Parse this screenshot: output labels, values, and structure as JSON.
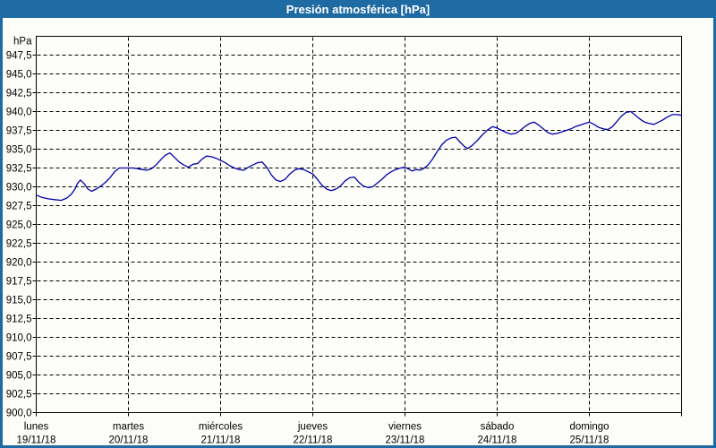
{
  "window": {
    "title": "Presión atmosférica [hPa]"
  },
  "colors": {
    "title_bar": "#1e6ba4",
    "border": "#1e6ba4",
    "title_text": "#ffffff",
    "background": "#fcfdf8",
    "plot_background": "#fdfdfa",
    "grid": "#000000",
    "axis": "#000000",
    "tick_text": "#000000",
    "line": "#0000a8"
  },
  "chart_data": {
    "type": "line",
    "title": "Presión atmosférica [hPa]",
    "ylabel": "hPa",
    "xlabel": "",
    "grid": "dashed",
    "legend_position": "none",
    "y_min": 900.0,
    "y_max": 950.0,
    "y_tick_step": 2.5,
    "y_ticks": [
      947.5,
      945.0,
      942.5,
      940.0,
      937.5,
      935.0,
      932.5,
      930.0,
      927.5,
      925.0,
      922.5,
      920.0,
      917.5,
      915.0,
      912.5,
      910.0,
      907.5,
      905.0,
      902.5,
      900.0
    ],
    "x_days": [
      {
        "name": "lunes",
        "date": "19/11/18"
      },
      {
        "name": "martes",
        "date": "20/11/18"
      },
      {
        "name": "miércoles",
        "date": "21/11/18"
      },
      {
        "name": "jueves",
        "date": "22/11/18"
      },
      {
        "name": "viernes",
        "date": "23/11/18"
      },
      {
        "name": "sábado",
        "date": "24/11/18"
      },
      {
        "name": "domingo",
        "date": "25/11/18"
      }
    ],
    "x_range_days": [
      0,
      7
    ],
    "series": [
      {
        "name": "Presión atmosférica",
        "color": "#0000a8",
        "x_unit": "days_from_start",
        "points": [
          [
            0,
            928.9
          ],
          [
            0.06,
            928.6
          ],
          [
            0.13,
            928.4
          ],
          [
            0.2,
            928.3
          ],
          [
            0.27,
            928.2
          ],
          [
            0.33,
            928.5
          ],
          [
            0.38,
            929.0
          ],
          [
            0.42,
            929.7
          ],
          [
            0.45,
            930.5
          ],
          [
            0.48,
            930.9
          ],
          [
            0.52,
            930.4
          ],
          [
            0.56,
            929.7
          ],
          [
            0.6,
            929.4
          ],
          [
            0.65,
            929.7
          ],
          [
            0.7,
            930.1
          ],
          [
            0.75,
            930.6
          ],
          [
            0.8,
            931.2
          ],
          [
            0.85,
            932.0
          ],
          [
            0.9,
            932.5
          ],
          [
            0.95,
            932.5
          ],
          [
            1.0,
            932.5
          ],
          [
            1.05,
            932.5
          ],
          [
            1.1,
            932.4
          ],
          [
            1.15,
            932.3
          ],
          [
            1.2,
            932.2
          ],
          [
            1.25,
            932.4
          ],
          [
            1.3,
            932.9
          ],
          [
            1.35,
            933.6
          ],
          [
            1.4,
            934.2
          ],
          [
            1.45,
            934.5
          ],
          [
            1.5,
            933.9
          ],
          [
            1.55,
            933.3
          ],
          [
            1.6,
            932.9
          ],
          [
            1.65,
            932.6
          ],
          [
            1.7,
            933.0
          ],
          [
            1.75,
            933.1
          ],
          [
            1.8,
            933.7
          ],
          [
            1.85,
            934.1
          ],
          [
            1.9,
            934.0
          ],
          [
            1.95,
            933.8
          ],
          [
            2.0,
            933.5
          ],
          [
            2.05,
            933.2
          ],
          [
            2.1,
            932.8
          ],
          [
            2.15,
            932.5
          ],
          [
            2.2,
            932.3
          ],
          [
            2.25,
            932.2
          ],
          [
            2.3,
            932.6
          ],
          [
            2.35,
            932.9
          ],
          [
            2.4,
            933.2
          ],
          [
            2.45,
            933.3
          ],
          [
            2.5,
            932.6
          ],
          [
            2.55,
            931.6
          ],
          [
            2.6,
            930.9
          ],
          [
            2.65,
            930.7
          ],
          [
            2.7,
            931.0
          ],
          [
            2.75,
            931.7
          ],
          [
            2.8,
            932.2
          ],
          [
            2.85,
            932.4
          ],
          [
            2.9,
            932.3
          ],
          [
            2.95,
            932.0
          ],
          [
            3.0,
            931.7
          ],
          [
            3.05,
            931.0
          ],
          [
            3.1,
            930.2
          ],
          [
            3.15,
            929.7
          ],
          [
            3.2,
            929.5
          ],
          [
            3.25,
            929.7
          ],
          [
            3.3,
            930.1
          ],
          [
            3.35,
            930.8
          ],
          [
            3.4,
            931.2
          ],
          [
            3.45,
            931.3
          ],
          [
            3.5,
            930.6
          ],
          [
            3.55,
            930.1
          ],
          [
            3.6,
            929.9
          ],
          [
            3.65,
            930.0
          ],
          [
            3.7,
            930.5
          ],
          [
            3.75,
            931.0
          ],
          [
            3.8,
            931.6
          ],
          [
            3.85,
            932.0
          ],
          [
            3.9,
            932.3
          ],
          [
            3.95,
            932.5
          ],
          [
            4.0,
            932.6
          ],
          [
            4.05,
            932.3
          ],
          [
            4.08,
            932.1
          ],
          [
            4.12,
            932.3
          ],
          [
            4.16,
            932.2
          ],
          [
            4.2,
            932.4
          ],
          [
            4.25,
            932.9
          ],
          [
            4.3,
            933.7
          ],
          [
            4.35,
            934.7
          ],
          [
            4.4,
            935.6
          ],
          [
            4.45,
            936.2
          ],
          [
            4.5,
            936.5
          ],
          [
            4.55,
            936.6
          ],
          [
            4.6,
            935.9
          ],
          [
            4.65,
            935.3
          ],
          [
            4.68,
            935.1
          ],
          [
            4.72,
            935.4
          ],
          [
            4.78,
            936.1
          ],
          [
            4.84,
            936.9
          ],
          [
            4.9,
            937.6
          ],
          [
            4.95,
            938.0
          ],
          [
            5.0,
            937.8
          ],
          [
            5.05,
            937.5
          ],
          [
            5.1,
            937.2
          ],
          [
            5.15,
            937.0
          ],
          [
            5.2,
            937.1
          ],
          [
            5.25,
            937.5
          ],
          [
            5.3,
            938.0
          ],
          [
            5.35,
            938.4
          ],
          [
            5.4,
            938.6
          ],
          [
            5.45,
            938.2
          ],
          [
            5.5,
            937.7
          ],
          [
            5.55,
            937.2
          ],
          [
            5.6,
            937.0
          ],
          [
            5.65,
            937.1
          ],
          [
            5.7,
            937.3
          ],
          [
            5.75,
            937.5
          ],
          [
            5.8,
            937.7
          ],
          [
            5.85,
            938.0
          ],
          [
            5.9,
            938.2
          ],
          [
            5.95,
            938.4
          ],
          [
            6.0,
            938.6
          ],
          [
            6.05,
            938.3
          ],
          [
            6.1,
            937.9
          ],
          [
            6.15,
            937.7
          ],
          [
            6.2,
            937.6
          ],
          [
            6.25,
            938.0
          ],
          [
            6.3,
            938.7
          ],
          [
            6.35,
            939.4
          ],
          [
            6.4,
            939.9
          ],
          [
            6.45,
            940.0
          ],
          [
            6.5,
            939.5
          ],
          [
            6.55,
            939.0
          ],
          [
            6.6,
            938.6
          ],
          [
            6.65,
            938.4
          ],
          [
            6.7,
            938.3
          ],
          [
            6.75,
            938.6
          ],
          [
            6.8,
            938.9
          ],
          [
            6.85,
            939.3
          ],
          [
            6.9,
            939.6
          ],
          [
            6.95,
            939.6
          ],
          [
            7.0,
            939.5
          ]
        ]
      }
    ]
  }
}
